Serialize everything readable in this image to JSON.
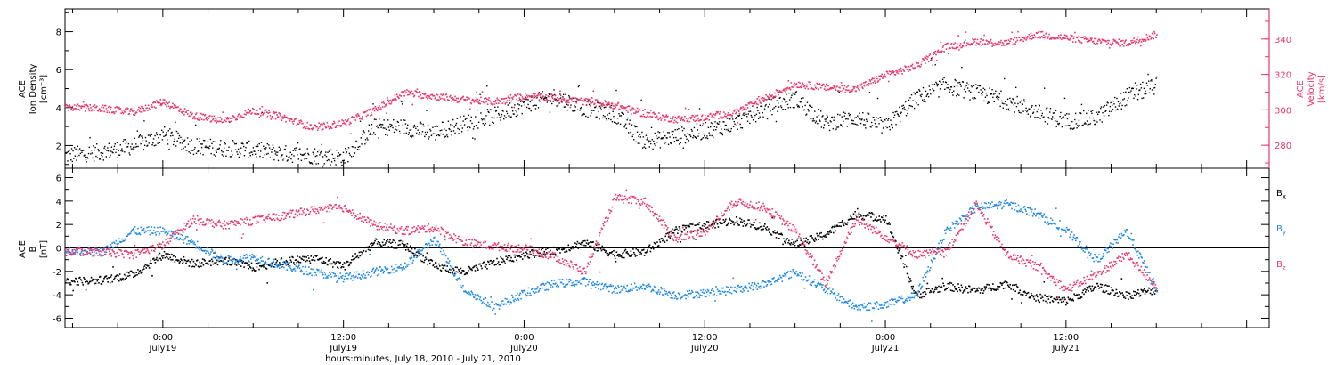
{
  "colors": {
    "black": "#000000",
    "red": "#e8386a",
    "blue": "#1f88e5"
  },
  "xaxis": {
    "title": "hours:minutes, July 18, 2010 - July 21, 2010",
    "range_hours": [
      -6.5,
      73.5
    ],
    "ticks": [
      {
        "time": "0:00",
        "date": "July19",
        "hour": 0
      },
      {
        "time": "12:00",
        "date": "July19",
        "hour": 12
      },
      {
        "time": "0:00",
        "date": "July20",
        "hour": 24
      },
      {
        "time": "12:00",
        "date": "July20",
        "hour": 36
      },
      {
        "time": "0:00",
        "date": "July21",
        "hour": 48
      },
      {
        "time": "12:00",
        "date": "July21",
        "hour": 60
      }
    ]
  },
  "chart_data": [
    {
      "type": "scatter",
      "panel": "top",
      "ylabel_left": [
        "ACE",
        "Ion Density",
        "[cm⁻³]"
      ],
      "ylabel_right": [
        "ACE",
        "Velocity",
        "[km/s]"
      ],
      "ylim_left": [
        0.8,
        9.2
      ],
      "yticks_left": [
        2,
        4,
        6,
        8
      ],
      "ylim_right": [
        267,
        357
      ],
      "yticks_right": [
        280,
        300,
        320,
        340
      ],
      "x_hours": [
        -6.5,
        -4,
        -2,
        0,
        2,
        4,
        6,
        8,
        10,
        12,
        14,
        16,
        18,
        20,
        22,
        24,
        26,
        28,
        30,
        32,
        34,
        36,
        38,
        40,
        42,
        44,
        46,
        48,
        50,
        52,
        54,
        56,
        58,
        60,
        62,
        64,
        66
      ],
      "series": [
        {
          "axis": "left",
          "color": "black",
          "values": [
            1.5,
            1.7,
            2.0,
            2.6,
            2.0,
            1.9,
            1.8,
            1.6,
            1.5,
            1.4,
            3.0,
            3.0,
            2.7,
            3.2,
            3.6,
            4.2,
            4.6,
            4.0,
            3.7,
            2.2,
            2.5,
            2.8,
            3.2,
            4.0,
            4.5,
            3.2,
            3.5,
            3.0,
            4.5,
            5.2,
            4.8,
            4.4,
            3.8,
            3.3,
            3.5,
            4.6,
            5.2
          ]
        },
        {
          "axis": "right",
          "color": "red",
          "values": [
            302,
            301,
            299,
            305,
            297,
            294,
            300,
            296,
            290,
            293,
            300,
            310,
            308,
            306,
            305,
            308,
            307,
            305,
            303,
            298,
            295,
            296,
            299,
            307,
            315,
            313,
            312,
            320,
            325,
            336,
            339,
            338,
            343,
            341,
            339,
            338,
            343
          ]
        }
      ]
    },
    {
      "type": "scatter",
      "panel": "bottom",
      "ylabel_left": [
        "ACE",
        "B",
        "[nT]"
      ],
      "ylim": [
        -6.8,
        6.8
      ],
      "yticks": [
        -6,
        -4,
        -2,
        0,
        2,
        4,
        6
      ],
      "x_hours": [
        -6.5,
        -4,
        -2,
        0,
        2,
        4,
        6,
        8,
        10,
        12,
        14,
        16,
        18,
        20,
        22,
        24,
        26,
        28,
        30,
        32,
        34,
        36,
        38,
        40,
        42,
        44,
        46,
        48,
        50,
        52,
        54,
        56,
        58,
        60,
        62,
        64,
        66
      ],
      "legend": [
        "Bx",
        "By",
        "Bz"
      ],
      "series": [
        {
          "name": "Bx",
          "color": "black",
          "values": [
            -2.8,
            -2.7,
            -2.2,
            -0.5,
            -1.3,
            -1.0,
            -1.6,
            -1.1,
            -0.8,
            -1.5,
            0.5,
            0.3,
            -1.5,
            -2.0,
            -1.2,
            -0.5,
            -0.2,
            0.5,
            -0.5,
            -0.3,
            1.5,
            2.0,
            2.4,
            1.8,
            0.3,
            1.2,
            2.9,
            2.6,
            -4.0,
            -3.2,
            -3.6,
            -3.0,
            -4.2,
            -4.5,
            -3.2,
            -4.0,
            -3.5
          ]
        },
        {
          "name": "By",
          "color": "blue",
          "values": [
            -0.2,
            -0.3,
            1.5,
            1.5,
            0.5,
            -1.0,
            -0.7,
            -1.5,
            -2.0,
            -2.5,
            -2.0,
            -1.5,
            0.8,
            -3.5,
            -5.0,
            -3.8,
            -3.0,
            -2.8,
            -3.5,
            -3.2,
            -4.0,
            -3.8,
            -3.5,
            -3.0,
            -2.0,
            -3.5,
            -5.0,
            -4.8,
            -4.0,
            1.5,
            3.5,
            3.8,
            3.0,
            1.5,
            -1.0,
            1.5,
            -3.5
          ]
        },
        {
          "name": "Bz",
          "color": "red",
          "values": [
            -0.3,
            -0.3,
            -0.5,
            0.3,
            2.5,
            2.0,
            2.4,
            2.8,
            3.3,
            3.5,
            2.0,
            1.5,
            1.8,
            0.5,
            0.2,
            0.0,
            -0.7,
            -2.0,
            4.3,
            4.0,
            0.8,
            1.5,
            4.0,
            3.5,
            1.5,
            -3.0,
            2.5,
            1.0,
            -0.5,
            -0.3,
            3.8,
            -0.5,
            -1.5,
            -3.5,
            -2.2,
            -0.5,
            -3.3
          ]
        }
      ]
    }
  ]
}
